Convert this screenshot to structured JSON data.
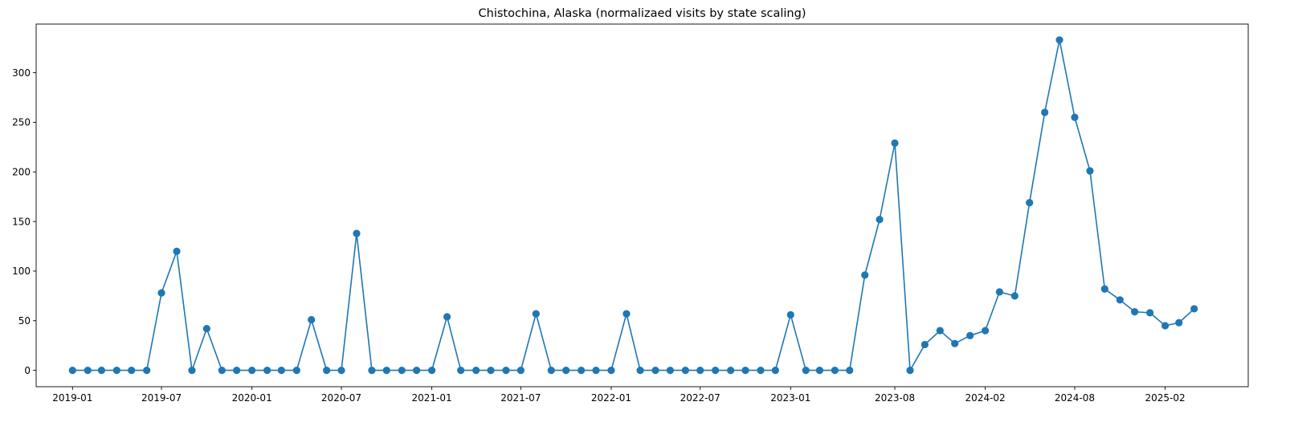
{
  "chart_data": {
    "type": "line",
    "title": "Chistochina, Alaska (normalizaed visits by state scaling)",
    "xlabel": "",
    "ylabel": "",
    "marker": "circle",
    "grid": false,
    "legend": "none",
    "color": "#1f77b4",
    "x_ticks": [
      "2019-01",
      "2019-07",
      "2020-01",
      "2020-07",
      "2021-01",
      "2021-07",
      "2022-01",
      "2022-07",
      "2023-01",
      "2023-08",
      "2024-02",
      "2024-08",
      "2025-02"
    ],
    "y_ticks": [
      0,
      50,
      100,
      150,
      200,
      250,
      300
    ],
    "xlim": [
      "2018-10-19",
      "2025-07-20"
    ],
    "ylim": [
      -16.5,
      349
    ],
    "series": [
      {
        "x": [
          "2019-01-01",
          "2019-02-01",
          "2019-03-01",
          "2019-04-01",
          "2019-05-01",
          "2019-06-01",
          "2019-07-01",
          "2019-08-01",
          "2019-09-01",
          "2019-10-01",
          "2019-11-01",
          "2019-12-01",
          "2020-01-01",
          "2020-02-01",
          "2020-03-01",
          "2020-04-01",
          "2020-05-01",
          "2020-06-01",
          "2020-07-01",
          "2020-08-01",
          "2020-09-01",
          "2020-10-01",
          "2020-11-01",
          "2020-12-01",
          "2021-01-01",
          "2021-02-01",
          "2021-03-01",
          "2021-04-01",
          "2021-05-01",
          "2021-06-01",
          "2021-07-01",
          "2021-08-01",
          "2021-09-01",
          "2021-10-01",
          "2021-11-01",
          "2021-12-01",
          "2022-01-01",
          "2022-02-01",
          "2022-03-01",
          "2022-04-01",
          "2022-05-01",
          "2022-06-01",
          "2022-07-01",
          "2022-08-01",
          "2022-09-01",
          "2022-10-01",
          "2022-11-01",
          "2022-12-01",
          "2023-01-01",
          "2023-02-01",
          "2023-03-01",
          "2023-04-01",
          "2023-05-01",
          "2023-06-01",
          "2023-07-01",
          "2023-08-01",
          "2023-09-01",
          "2023-10-01",
          "2023-11-01",
          "2023-12-01",
          "2024-01-01",
          "2024-02-01",
          "2024-03-01",
          "2024-04-01",
          "2024-05-01",
          "2024-06-01",
          "2024-07-01",
          "2024-08-01",
          "2024-09-01",
          "2024-10-01",
          "2024-11-01",
          "2024-12-01",
          "2025-01-01",
          "2025-02-01",
          "2025-03-01",
          "2025-04-01"
        ],
        "values": [
          0,
          0,
          0,
          0,
          0,
          0,
          78,
          120,
          0,
          42,
          0,
          0,
          0,
          0,
          0,
          0,
          51,
          0,
          0,
          138,
          0,
          0,
          0,
          0,
          0,
          54,
          0,
          0,
          0,
          0,
          0,
          57,
          0,
          0,
          0,
          0,
          0,
          57,
          0,
          0,
          0,
          0,
          0,
          0,
          0,
          0,
          0,
          0,
          56,
          0,
          0,
          0,
          0,
          96,
          152,
          229,
          0,
          26,
          40,
          27,
          35,
          40,
          79,
          75,
          169,
          260,
          333,
          255,
          201,
          82,
          71,
          59,
          58,
          45,
          48,
          62
        ]
      }
    ]
  }
}
